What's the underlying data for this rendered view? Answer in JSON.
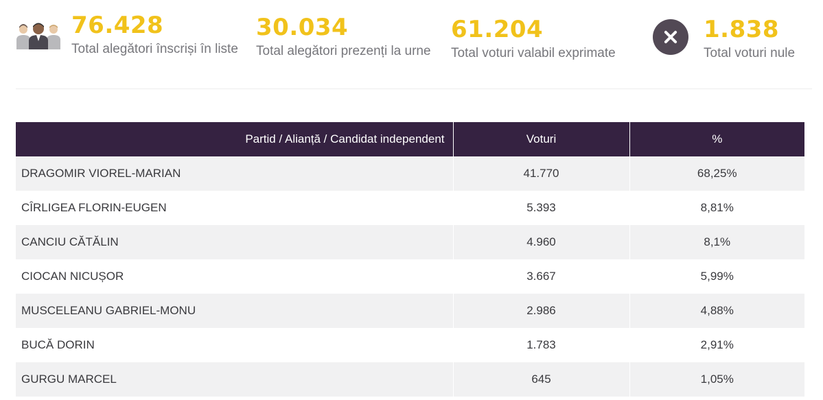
{
  "stats": [
    {
      "value": "76.428",
      "label": "Total alegători înscriși în liste",
      "icon": "people-icon"
    },
    {
      "value": "30.034",
      "label": "Total alegători prezenți la urne"
    },
    {
      "value": "61.204",
      "label": "Total voturi valabil exprimate"
    },
    {
      "value": "1.838",
      "label": "Total voturi nule",
      "icon": "close-icon"
    }
  ],
  "colors": {
    "accent": "#f1c21b",
    "header_bg": "#352241",
    "icon_bg": "#524955"
  },
  "table": {
    "headers": {
      "party": "Partid / Alianță / Candidat independent",
      "votes": "Voturi",
      "percent": "%"
    },
    "rows": [
      {
        "name": "DRAGOMIR VIOREL-MARIAN",
        "votes": "41.770",
        "percent": "68,25%"
      },
      {
        "name": "CÎRLIGEA FLORIN-EUGEN",
        "votes": "5.393",
        "percent": "8,81%"
      },
      {
        "name": "CANCIU CĂTĂLIN",
        "votes": "4.960",
        "percent": "8,1%"
      },
      {
        "name": "CIOCAN NICUȘOR",
        "votes": "3.667",
        "percent": "5,99%"
      },
      {
        "name": "MUSCELEANU GABRIEL-MONU",
        "votes": "2.986",
        "percent": "4,88%"
      },
      {
        "name": "BUCĂ DORIN",
        "votes": "1.783",
        "percent": "2,91%"
      },
      {
        "name": "GURGU MARCEL",
        "votes": "645",
        "percent": "1,05%"
      }
    ]
  }
}
